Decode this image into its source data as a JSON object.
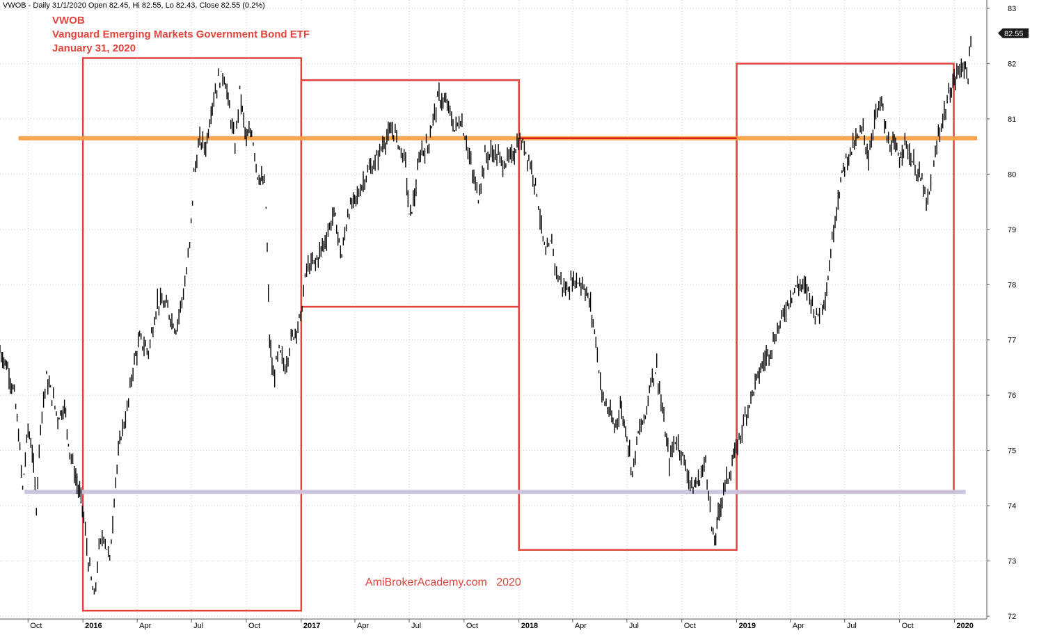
{
  "header": {
    "symbol_line": "VWOB - Daily 31/1/2020 Open 82.45, Hi 82.55, Lo 82.43, Close 82.55 (0.2%)"
  },
  "annotations": {
    "ticker": "VWOB",
    "name": "Vanguard Emerging Markets Government Bond ETF",
    "date": "January 31, 2020",
    "watermark": "AmiBrokerAcademy.com   2020",
    "last_price_tag": "82.55"
  },
  "colors": {
    "price": "#000000",
    "box": "#e0443c",
    "resistance": "#f7a144",
    "support": "#cbc3dc",
    "title": "#e0443c",
    "grid": "#c8c8c8",
    "price_tag_bg": "#1a1a1a"
  },
  "chart_data": {
    "type": "line",
    "title": "VWOB",
    "subtitle": "Vanguard Emerging Markets Government Bond ETF",
    "ylim": [
      72,
      83
    ],
    "y_ticks": [
      72,
      73,
      74,
      75,
      76,
      77,
      78,
      79,
      80,
      81,
      82,
      83
    ],
    "x_range": [
      "2015-08-15",
      "2020-02-08"
    ],
    "x_ticks": [
      {
        "date": "2015-10-01",
        "label": "Oct",
        "bold": false
      },
      {
        "date": "2016-01-01",
        "label": "2016",
        "bold": true
      },
      {
        "date": "2016-04-01",
        "label": "Apr",
        "bold": false
      },
      {
        "date": "2016-07-01",
        "label": "Jul",
        "bold": false
      },
      {
        "date": "2016-10-01",
        "label": "Oct",
        "bold": false
      },
      {
        "date": "2017-01-01",
        "label": "2017",
        "bold": true
      },
      {
        "date": "2017-04-01",
        "label": "Apr",
        "bold": false
      },
      {
        "date": "2017-07-01",
        "label": "Jul",
        "bold": false
      },
      {
        "date": "2017-10-01",
        "label": "Oct",
        "bold": false
      },
      {
        "date": "2018-01-01",
        "label": "2018",
        "bold": true
      },
      {
        "date": "2018-04-01",
        "label": "Apr",
        "bold": false
      },
      {
        "date": "2018-07-01",
        "label": "Jul",
        "bold": false
      },
      {
        "date": "2018-10-01",
        "label": "Oct",
        "bold": false
      },
      {
        "date": "2019-01-01",
        "label": "2019",
        "bold": true
      },
      {
        "date": "2019-04-01",
        "label": "Apr",
        "bold": false
      },
      {
        "date": "2019-07-01",
        "label": "Jul",
        "bold": false
      },
      {
        "date": "2019-10-01",
        "label": "Oct",
        "bold": false
      },
      {
        "date": "2020-01-01",
        "label": "2020",
        "bold": true
      }
    ],
    "series": [
      {
        "values": [
          [
            "2015-08-15",
            76.8
          ],
          [
            "2015-08-28",
            76.5
          ],
          [
            "2015-09-08",
            76.0
          ],
          [
            "2015-09-15",
            75.3
          ],
          [
            "2015-09-22",
            74.3
          ],
          [
            "2015-10-01",
            75.4
          ],
          [
            "2015-10-08",
            75.0
          ],
          [
            "2015-10-15",
            74.0
          ],
          [
            "2015-10-22",
            75.5
          ],
          [
            "2015-11-01",
            76.3
          ],
          [
            "2015-11-10",
            76.0
          ],
          [
            "2015-11-20",
            75.6
          ],
          [
            "2015-12-01",
            75.8
          ],
          [
            "2015-12-10",
            75.0
          ],
          [
            "2015-12-20",
            74.5
          ],
          [
            "2015-12-31",
            74.0
          ],
          [
            "2016-01-10",
            73.0
          ],
          [
            "2016-01-20",
            72.3
          ],
          [
            "2016-01-28",
            73.2
          ],
          [
            "2016-02-05",
            73.5
          ],
          [
            "2016-02-15",
            73.0
          ],
          [
            "2016-02-25",
            74.5
          ],
          [
            "2016-03-05",
            75.3
          ],
          [
            "2016-03-15",
            75.7
          ],
          [
            "2016-03-25",
            76.5
          ],
          [
            "2016-04-05",
            77.0
          ],
          [
            "2016-04-20",
            76.8
          ],
          [
            "2016-05-05",
            77.7
          ],
          [
            "2016-05-20",
            77.6
          ],
          [
            "2016-06-05",
            77.2
          ],
          [
            "2016-06-20",
            78.0
          ],
          [
            "2016-06-28",
            78.7
          ],
          [
            "2016-07-05",
            80.0
          ],
          [
            "2016-07-15",
            80.6
          ],
          [
            "2016-07-25",
            80.5
          ],
          [
            "2016-08-05",
            81.3
          ],
          [
            "2016-08-15",
            81.7
          ],
          [
            "2016-08-25",
            81.8
          ],
          [
            "2016-09-05",
            81.0
          ],
          [
            "2016-09-12",
            80.5
          ],
          [
            "2016-09-20",
            81.5
          ],
          [
            "2016-10-01",
            80.6
          ],
          [
            "2016-10-10",
            80.8
          ],
          [
            "2016-10-20",
            80.0
          ],
          [
            "2016-10-31",
            79.8
          ],
          [
            "2016-11-03",
            79.4
          ],
          [
            "2016-11-09",
            77.0
          ],
          [
            "2016-11-15",
            76.3
          ],
          [
            "2016-11-25",
            76.8
          ],
          [
            "2016-12-05",
            76.5
          ],
          [
            "2016-12-15",
            77.0
          ],
          [
            "2016-12-31",
            77.4
          ],
          [
            "2017-01-10",
            78.3
          ],
          [
            "2017-01-25",
            78.4
          ],
          [
            "2017-02-10",
            78.8
          ],
          [
            "2017-02-25",
            79.3
          ],
          [
            "2017-03-10",
            78.5
          ],
          [
            "2017-03-20",
            79.3
          ],
          [
            "2017-04-05",
            79.6
          ],
          [
            "2017-04-20",
            80.0
          ],
          [
            "2017-05-05",
            80.2
          ],
          [
            "2017-05-20",
            80.6
          ],
          [
            "2017-06-05",
            80.8
          ],
          [
            "2017-06-15",
            80.5
          ],
          [
            "2017-06-25",
            80.2
          ],
          [
            "2017-07-01",
            79.2
          ],
          [
            "2017-07-10",
            79.6
          ],
          [
            "2017-07-20",
            80.4
          ],
          [
            "2017-08-01",
            80.5
          ],
          [
            "2017-08-10",
            81.0
          ],
          [
            "2017-08-20",
            81.4
          ],
          [
            "2017-09-05",
            81.2
          ],
          [
            "2017-09-15",
            80.8
          ],
          [
            "2017-09-25",
            81.0
          ],
          [
            "2017-10-05",
            80.6
          ],
          [
            "2017-10-15",
            80.0
          ],
          [
            "2017-10-25",
            79.6
          ],
          [
            "2017-11-05",
            80.3
          ],
          [
            "2017-11-20",
            80.4
          ],
          [
            "2017-12-05",
            80.2
          ],
          [
            "2017-12-20",
            80.3
          ],
          [
            "2017-12-31",
            80.6
          ],
          [
            "2018-01-10",
            80.5
          ],
          [
            "2018-01-20",
            80.2
          ],
          [
            "2018-01-31",
            79.7
          ],
          [
            "2018-02-08",
            79.0
          ],
          [
            "2018-02-15",
            78.5
          ],
          [
            "2018-02-25",
            78.8
          ],
          [
            "2018-03-05",
            78.2
          ],
          [
            "2018-03-20",
            77.9
          ],
          [
            "2018-04-05",
            78.1
          ],
          [
            "2018-04-20",
            78.0
          ],
          [
            "2018-05-01",
            77.6
          ],
          [
            "2018-05-10",
            77.0
          ],
          [
            "2018-05-20",
            76.0
          ],
          [
            "2018-06-01",
            75.7
          ],
          [
            "2018-06-10",
            75.4
          ],
          [
            "2018-06-20",
            75.8
          ],
          [
            "2018-07-01",
            75.3
          ],
          [
            "2018-07-10",
            74.6
          ],
          [
            "2018-07-20",
            75.3
          ],
          [
            "2018-08-01",
            75.6
          ],
          [
            "2018-08-10",
            76.3
          ],
          [
            "2018-08-20",
            76.5
          ],
          [
            "2018-09-01",
            75.5
          ],
          [
            "2018-09-10",
            74.8
          ],
          [
            "2018-09-20",
            75.2
          ],
          [
            "2018-09-30",
            75.0
          ],
          [
            "2018-10-10",
            74.6
          ],
          [
            "2018-10-20",
            74.3
          ],
          [
            "2018-10-31",
            74.5
          ],
          [
            "2018-11-10",
            74.8
          ],
          [
            "2018-11-15",
            74.3
          ],
          [
            "2018-11-20",
            73.6
          ],
          [
            "2018-11-25",
            73.3
          ],
          [
            "2018-12-01",
            73.8
          ],
          [
            "2018-12-10",
            74.3
          ],
          [
            "2018-12-20",
            74.6
          ],
          [
            "2018-12-31",
            75.0
          ],
          [
            "2019-01-10",
            75.4
          ],
          [
            "2019-01-20",
            75.8
          ],
          [
            "2019-02-01",
            76.2
          ],
          [
            "2019-02-15",
            76.6
          ],
          [
            "2019-03-01",
            76.9
          ],
          [
            "2019-03-15",
            77.3
          ],
          [
            "2019-04-01",
            77.8
          ],
          [
            "2019-04-15",
            78.0
          ],
          [
            "2019-05-01",
            77.9
          ],
          [
            "2019-05-15",
            77.4
          ],
          [
            "2019-06-01",
            77.9
          ],
          [
            "2019-06-10",
            78.8
          ],
          [
            "2019-06-20",
            79.6
          ],
          [
            "2019-07-01",
            80.2
          ],
          [
            "2019-07-15",
            80.5
          ],
          [
            "2019-08-01",
            80.8
          ],
          [
            "2019-08-10",
            80.3
          ],
          [
            "2019-08-20",
            81.0
          ],
          [
            "2019-09-01",
            81.3
          ],
          [
            "2019-09-10",
            80.6
          ],
          [
            "2019-09-20",
            80.5
          ],
          [
            "2019-10-01",
            80.3
          ],
          [
            "2019-10-10",
            80.6
          ],
          [
            "2019-10-20",
            80.3
          ],
          [
            "2019-11-01",
            80.0
          ],
          [
            "2019-11-10",
            79.8
          ],
          [
            "2019-11-15",
            79.4
          ],
          [
            "2019-11-25",
            79.9
          ],
          [
            "2019-12-05",
            80.7
          ],
          [
            "2019-12-15",
            81.1
          ],
          [
            "2019-12-25",
            81.5
          ],
          [
            "2020-01-05",
            81.8
          ],
          [
            "2020-01-15",
            82.0
          ],
          [
            "2020-01-24",
            81.8
          ],
          [
            "2020-01-31",
            82.55
          ]
        ]
      }
    ],
    "boxes": [
      {
        "x0": "2016-01-01",
        "x1": "2017-01-01",
        "y0": 72.1,
        "y1": 82.1
      },
      {
        "x0": "2017-01-01",
        "x1": "2018-01-01",
        "y0": 77.6,
        "y1": 81.7
      },
      {
        "x0": "2018-01-01",
        "x1": "2019-01-01",
        "y0": 73.2,
        "y1": 80.65
      },
      {
        "x0": "2019-01-01",
        "x1": "2019-12-31",
        "y0": 74.25,
        "y1": 82.0
      }
    ],
    "hlines": [
      {
        "name": "resistance",
        "y": 80.65,
        "x0": "2015-09-15",
        "x1": "2020-02-08"
      },
      {
        "name": "support",
        "y": 74.25,
        "x0": "2015-09-25",
        "x1": "2020-01-20"
      }
    ],
    "grid": true,
    "y_axis_side": "right"
  }
}
